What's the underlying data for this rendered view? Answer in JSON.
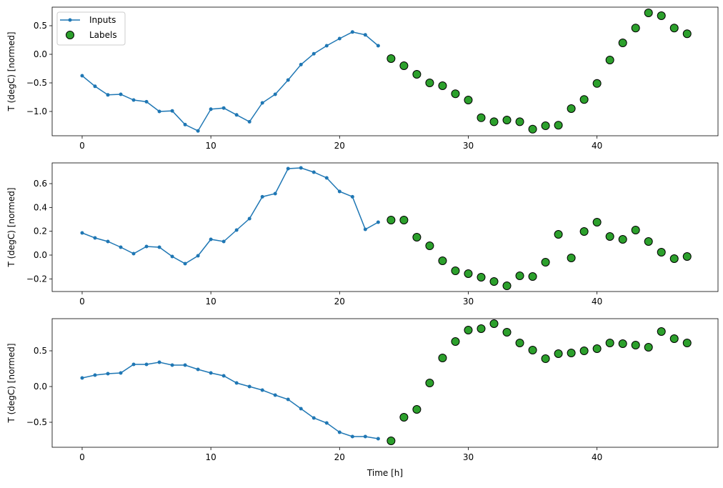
{
  "chart_data": [
    {
      "type": "line",
      "xlabel": "",
      "ylabel": "T (degC) [normed]",
      "xlim": [
        -2.33,
        49.4
      ],
      "ylim": [
        -1.425,
        0.825
      ],
      "xticks": [
        0,
        10,
        20,
        30,
        40
      ],
      "yticks": [
        -1.0,
        -0.5,
        0.0,
        0.5
      ],
      "ytick_labels": [
        "−1.0",
        "−0.5",
        "0.0",
        "0.5"
      ],
      "legend": {
        "placement": "top-left",
        "entries": [
          "Inputs",
          "Labels"
        ]
      },
      "series": [
        {
          "name": "Inputs",
          "kind": "line-marker",
          "color": "#1f77b4",
          "x": [
            0,
            1,
            2,
            3,
            4,
            5,
            6,
            7,
            8,
            9,
            10,
            11,
            12,
            13,
            14,
            15,
            16,
            17,
            18,
            19,
            20,
            21,
            22,
            23
          ],
          "y": [
            -0.375,
            -0.56,
            -0.71,
            -0.7,
            -0.8,
            -0.83,
            -1.0,
            -0.99,
            -1.23,
            -1.34,
            -0.96,
            -0.94,
            -1.06,
            -1.18,
            -0.85,
            -0.7,
            -0.45,
            -0.18,
            0.01,
            0.15,
            0.275,
            0.39,
            0.34,
            0.15
          ]
        },
        {
          "name": "Labels",
          "kind": "scatter",
          "color": "#2ca02c",
          "edgecolor": "#000000",
          "x": [
            24,
            25,
            26,
            27,
            28,
            29,
            30,
            31,
            32,
            33,
            34,
            35,
            36,
            37,
            38,
            39,
            40,
            41,
            42,
            43,
            44,
            45,
            46,
            47
          ],
          "y": [
            -0.075,
            -0.2,
            -0.35,
            -0.5,
            -0.55,
            -0.69,
            -0.8,
            -1.11,
            -1.18,
            -1.15,
            -1.18,
            -1.31,
            -1.25,
            -1.24,
            -0.95,
            -0.79,
            -0.51,
            -0.1,
            0.2,
            0.46,
            0.725,
            0.675,
            0.46,
            0.36
          ]
        }
      ]
    },
    {
      "type": "line",
      "xlabel": "",
      "ylabel": "T (degC) [normed]",
      "xlim": [
        -2.33,
        49.4
      ],
      "ylim": [
        -0.306,
        0.774
      ],
      "xticks": [
        0,
        10,
        20,
        30,
        40
      ],
      "yticks": [
        -0.2,
        0.0,
        0.2,
        0.4,
        0.6
      ],
      "ytick_labels": [
        "−0.2",
        "0.0",
        "0.2",
        "0.4",
        "0.6"
      ],
      "series": [
        {
          "kind": "line-marker",
          "color": "#1f77b4",
          "x": [
            0,
            1,
            2,
            3,
            4,
            5,
            6,
            7,
            8,
            9,
            10,
            11,
            12,
            13,
            14,
            15,
            16,
            17,
            18,
            19,
            20,
            21,
            22,
            23
          ],
          "y": [
            0.186,
            0.144,
            0.114,
            0.066,
            0.012,
            0.072,
            0.066,
            -0.012,
            -0.072,
            -0.006,
            0.132,
            0.114,
            0.21,
            0.306,
            0.49,
            0.516,
            0.726,
            0.732,
            0.696,
            0.648,
            0.534,
            0.49,
            0.216,
            0.276
          ]
        },
        {
          "kind": "scatter",
          "color": "#2ca02c",
          "edgecolor": "#000000",
          "x": [
            24,
            25,
            26,
            27,
            28,
            29,
            30,
            31,
            32,
            33,
            34,
            35,
            36,
            37,
            38,
            39,
            40,
            41,
            42,
            43,
            44,
            45,
            46,
            47
          ],
          "y": [
            0.294,
            0.294,
            0.15,
            0.078,
            -0.048,
            -0.132,
            -0.156,
            -0.186,
            -0.222,
            -0.258,
            -0.174,
            -0.18,
            -0.06,
            0.174,
            -0.024,
            0.198,
            0.276,
            0.156,
            0.132,
            0.21,
            0.114,
            0.024,
            -0.03,
            -0.012
          ]
        }
      ]
    },
    {
      "type": "line",
      "xlabel": "Time [h]",
      "ylabel": "T (degC) [normed]",
      "xlim": [
        -2.33,
        49.4
      ],
      "ylim": [
        -0.85,
        0.95
      ],
      "xticks": [
        0,
        10,
        20,
        30,
        40
      ],
      "yticks": [
        -0.5,
        0.0,
        0.5
      ],
      "ytick_labels": [
        "−0.5",
        "0.0",
        "0.5"
      ],
      "series": [
        {
          "kind": "line-marker",
          "color": "#1f77b4",
          "x": [
            0,
            1,
            2,
            3,
            4,
            5,
            6,
            7,
            8,
            9,
            10,
            11,
            12,
            13,
            14,
            15,
            16,
            17,
            18,
            19,
            20,
            21,
            22,
            23
          ],
          "y": [
            0.12,
            0.16,
            0.18,
            0.19,
            0.31,
            0.31,
            0.34,
            0.3,
            0.3,
            0.24,
            0.19,
            0.15,
            0.05,
            0.0,
            -0.05,
            -0.12,
            -0.18,
            -0.31,
            -0.44,
            -0.51,
            -0.64,
            -0.7,
            -0.7,
            -0.73
          ]
        },
        {
          "kind": "scatter",
          "color": "#2ca02c",
          "edgecolor": "#000000",
          "x": [
            24,
            25,
            26,
            27,
            28,
            29,
            30,
            31,
            32,
            33,
            34,
            35,
            36,
            37,
            38,
            39,
            40,
            41,
            42,
            43,
            44,
            45,
            46,
            47
          ],
          "y": [
            -0.76,
            -0.43,
            -0.32,
            0.05,
            0.4,
            0.63,
            0.79,
            0.81,
            0.88,
            0.76,
            0.61,
            0.51,
            0.39,
            0.46,
            0.47,
            0.5,
            0.53,
            0.61,
            0.6,
            0.58,
            0.55,
            0.77,
            0.67,
            0.61
          ]
        }
      ]
    }
  ]
}
